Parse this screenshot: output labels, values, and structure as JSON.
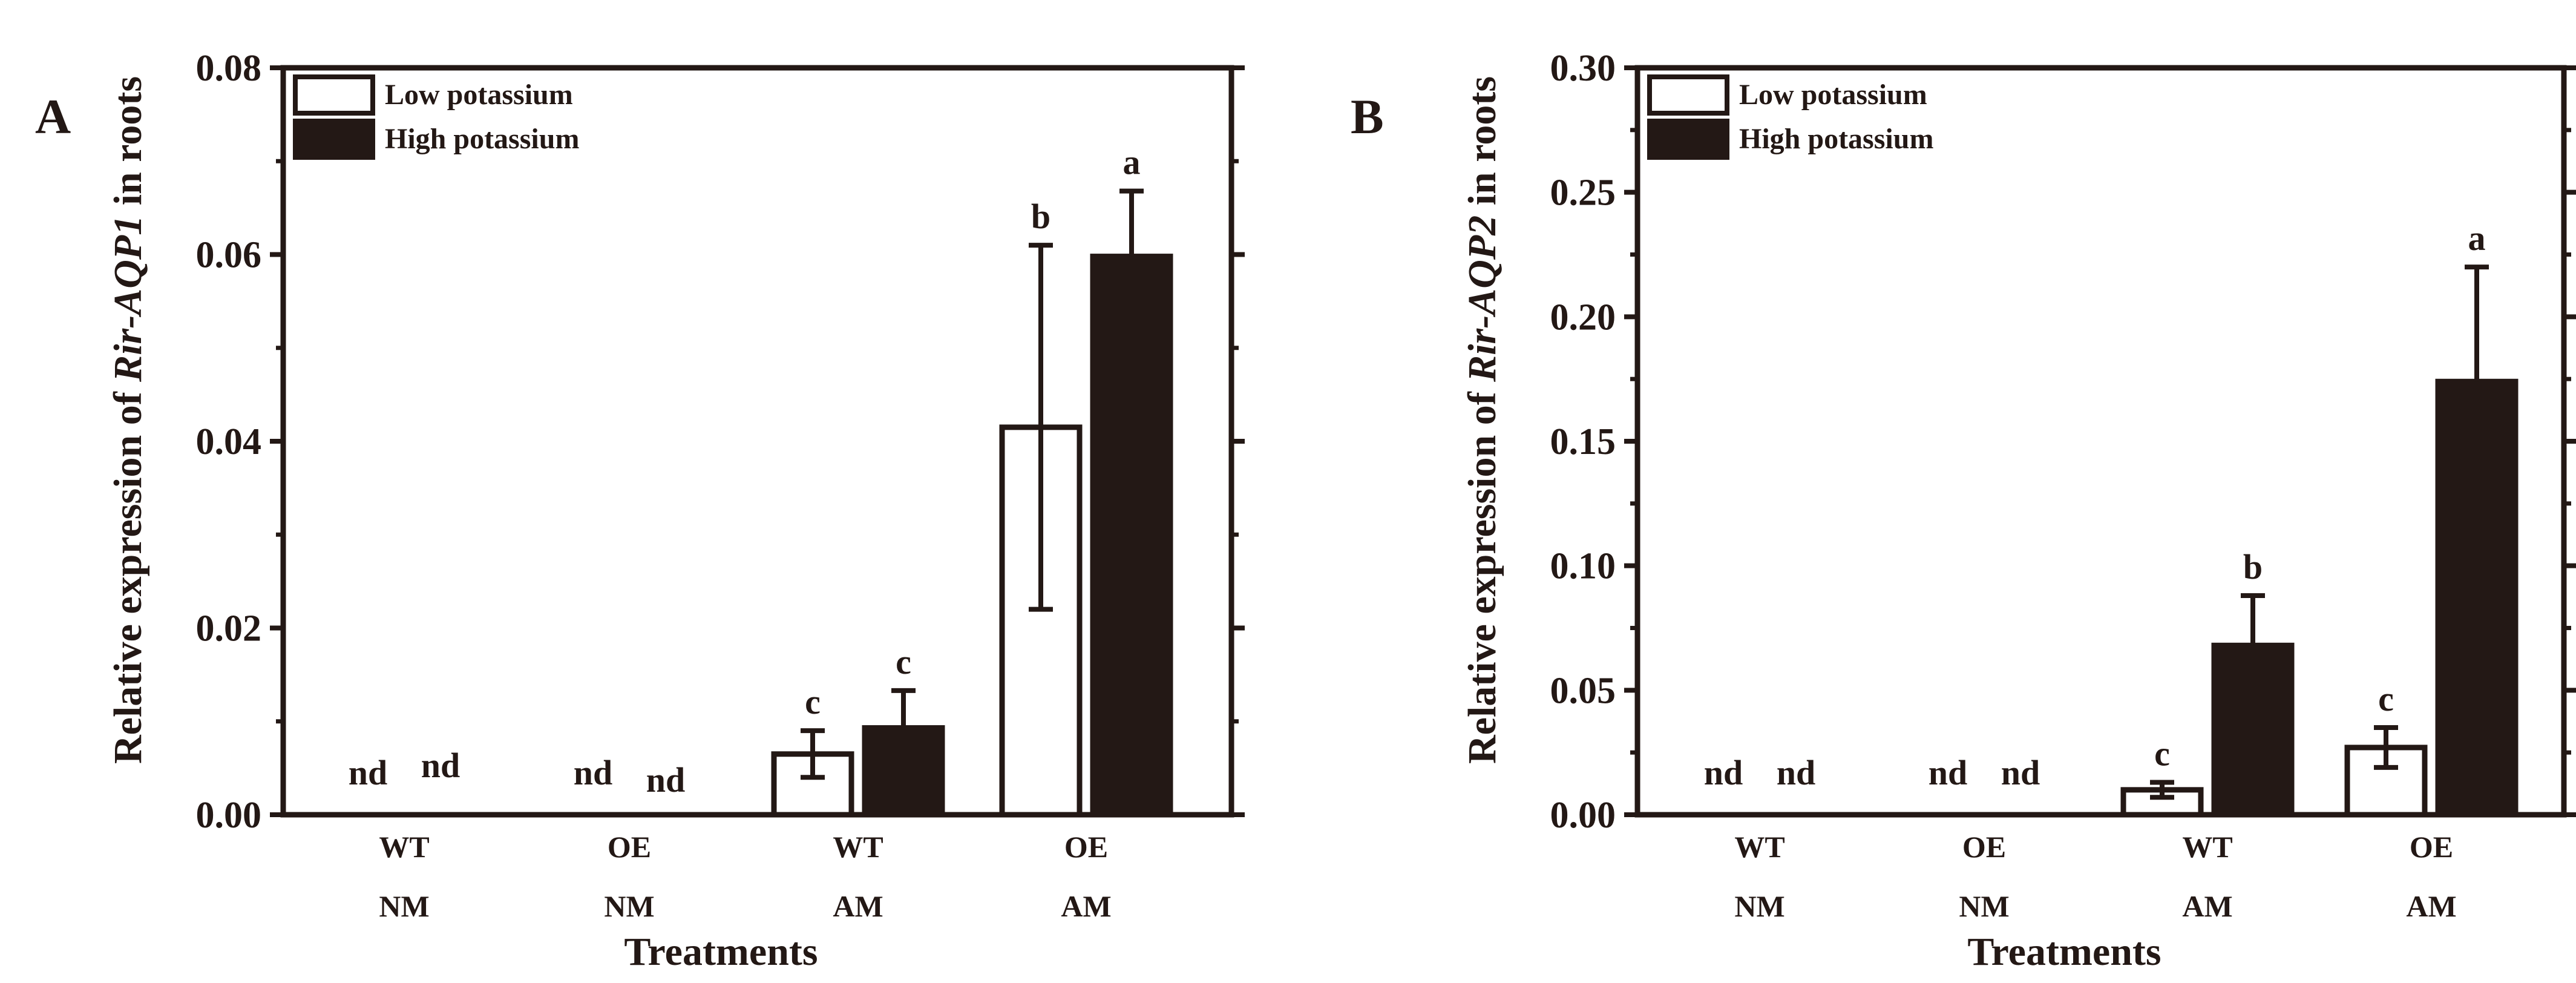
{
  "chart_data": [
    {
      "type": "bar",
      "panel": "A",
      "ylabel_prefix": "Relative expression of ",
      "ylabel_gene": "Rir-AQP1",
      "ylabel_suffix": " in roots",
      "xlabel": "Treatments",
      "ylim": [
        0,
        0.08
      ],
      "yticks": [
        0.0,
        0.02,
        0.04,
        0.06,
        0.08
      ],
      "ytick_labels": [
        "0.00",
        "0.02",
        "0.04",
        "0.06",
        "0.08"
      ],
      "categories": [
        {
          "line1": "WT",
          "line2": "NM"
        },
        {
          "line1": "OE",
          "line2": "NM"
        },
        {
          "line1": "WT",
          "line2": "AM"
        },
        {
          "line1": "OE",
          "line2": "AM"
        }
      ],
      "legend_position": "top-left",
      "series": [
        {
          "name": "Low potassium",
          "fill": "#ffffff",
          "values": [
            0,
            0,
            0.0065,
            0.0415
          ],
          "errors": [
            0,
            0,
            0.0025,
            0.0195
          ],
          "labels": [
            "nd",
            "nd",
            "c",
            "b"
          ]
        },
        {
          "name": "High potassium",
          "fill": "#231815",
          "values": [
            0,
            0,
            0.0093,
            0.0598
          ],
          "errors": [
            0,
            0,
            0.004,
            0.007
          ],
          "labels": [
            "nd",
            "nd",
            "c",
            "a"
          ]
        }
      ]
    },
    {
      "type": "bar",
      "panel": "B",
      "ylabel_prefix": "Relative expression of ",
      "ylabel_gene": "Rir-AQP2",
      "ylabel_suffix": " in roots",
      "xlabel": "Treatments",
      "ylim": [
        0,
        0.3
      ],
      "yticks": [
        0.0,
        0.05,
        0.1,
        0.15,
        0.2,
        0.25,
        0.3
      ],
      "ytick_labels": [
        "0.00",
        "0.05",
        "0.10",
        "0.15",
        "0.20",
        "0.25",
        "0.30"
      ],
      "categories": [
        {
          "line1": "WT",
          "line2": "NM"
        },
        {
          "line1": "OE",
          "line2": "NM"
        },
        {
          "line1": "WT",
          "line2": "AM"
        },
        {
          "line1": "OE",
          "line2": "AM"
        }
      ],
      "legend_position": "top-left",
      "series": [
        {
          "name": "Low potassium",
          "fill": "#ffffff",
          "values": [
            0,
            0,
            0.01,
            0.027
          ],
          "errors": [
            0,
            0,
            0.003,
            0.008
          ],
          "labels": [
            "nd",
            "nd",
            "c",
            "c"
          ]
        },
        {
          "name": "High potassium",
          "fill": "#231815",
          "values": [
            0,
            0,
            0.068,
            0.174
          ],
          "errors": [
            0,
            0,
            0.02,
            0.046
          ],
          "labels": [
            "nd",
            "nd",
            "b",
            "a"
          ]
        }
      ]
    }
  ]
}
